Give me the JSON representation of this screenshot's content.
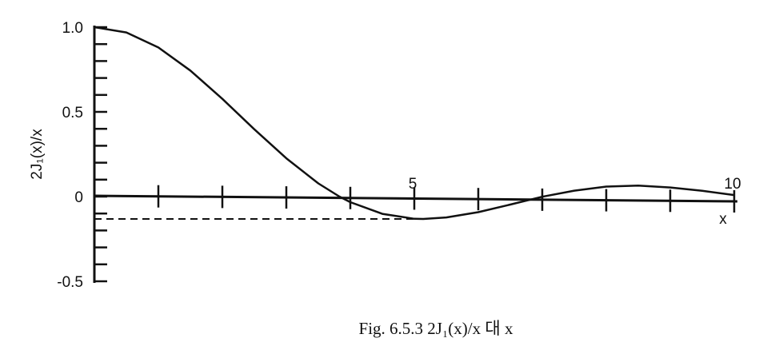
{
  "chart_data": {
    "type": "line",
    "caption": "Fig. 6.5.3   2J₁(x)/x 대 x",
    "xlabel": "x",
    "ylabel": "2J₁(x)/x",
    "xlim": [
      0,
      10
    ],
    "ylim": [
      -0.5,
      1.0
    ],
    "x_tick_labels": [
      {
        "value": 5,
        "label": "5"
      },
      {
        "value": 10,
        "label": "10"
      }
    ],
    "y_tick_labels": [
      {
        "value": 1.0,
        "label": "1.0"
      },
      {
        "value": 0.5,
        "label": "0.5"
      },
      {
        "value": 0,
        "label": "0"
      },
      {
        "value": -0.5,
        "label": "-0.5"
      }
    ],
    "grid": false,
    "series": [
      {
        "style": "solid",
        "points": [
          [
            0.0,
            1.0
          ],
          [
            0.5,
            0.969
          ],
          [
            1.0,
            0.88
          ],
          [
            1.5,
            0.744
          ],
          [
            2.0,
            0.577
          ],
          [
            2.5,
            0.397
          ],
          [
            3.0,
            0.226
          ],
          [
            3.5,
            0.078
          ],
          [
            3.83,
            0.0
          ],
          [
            4.0,
            -0.033
          ],
          [
            4.5,
            -0.102
          ],
          [
            5.0,
            -0.131
          ],
          [
            5.14,
            -0.132
          ],
          [
            5.5,
            -0.123
          ],
          [
            6.0,
            -0.092
          ],
          [
            6.5,
            -0.047
          ],
          [
            7.0,
            -0.001
          ],
          [
            7.5,
            0.035
          ],
          [
            8.0,
            0.059
          ],
          [
            8.5,
            0.065
          ],
          [
            9.0,
            0.054
          ],
          [
            9.5,
            0.034
          ],
          [
            10.0,
            0.009
          ]
        ]
      },
      {
        "style": "dashed",
        "points": [
          [
            0.0,
            -0.132
          ],
          [
            5.14,
            -0.132
          ]
        ]
      }
    ]
  }
}
